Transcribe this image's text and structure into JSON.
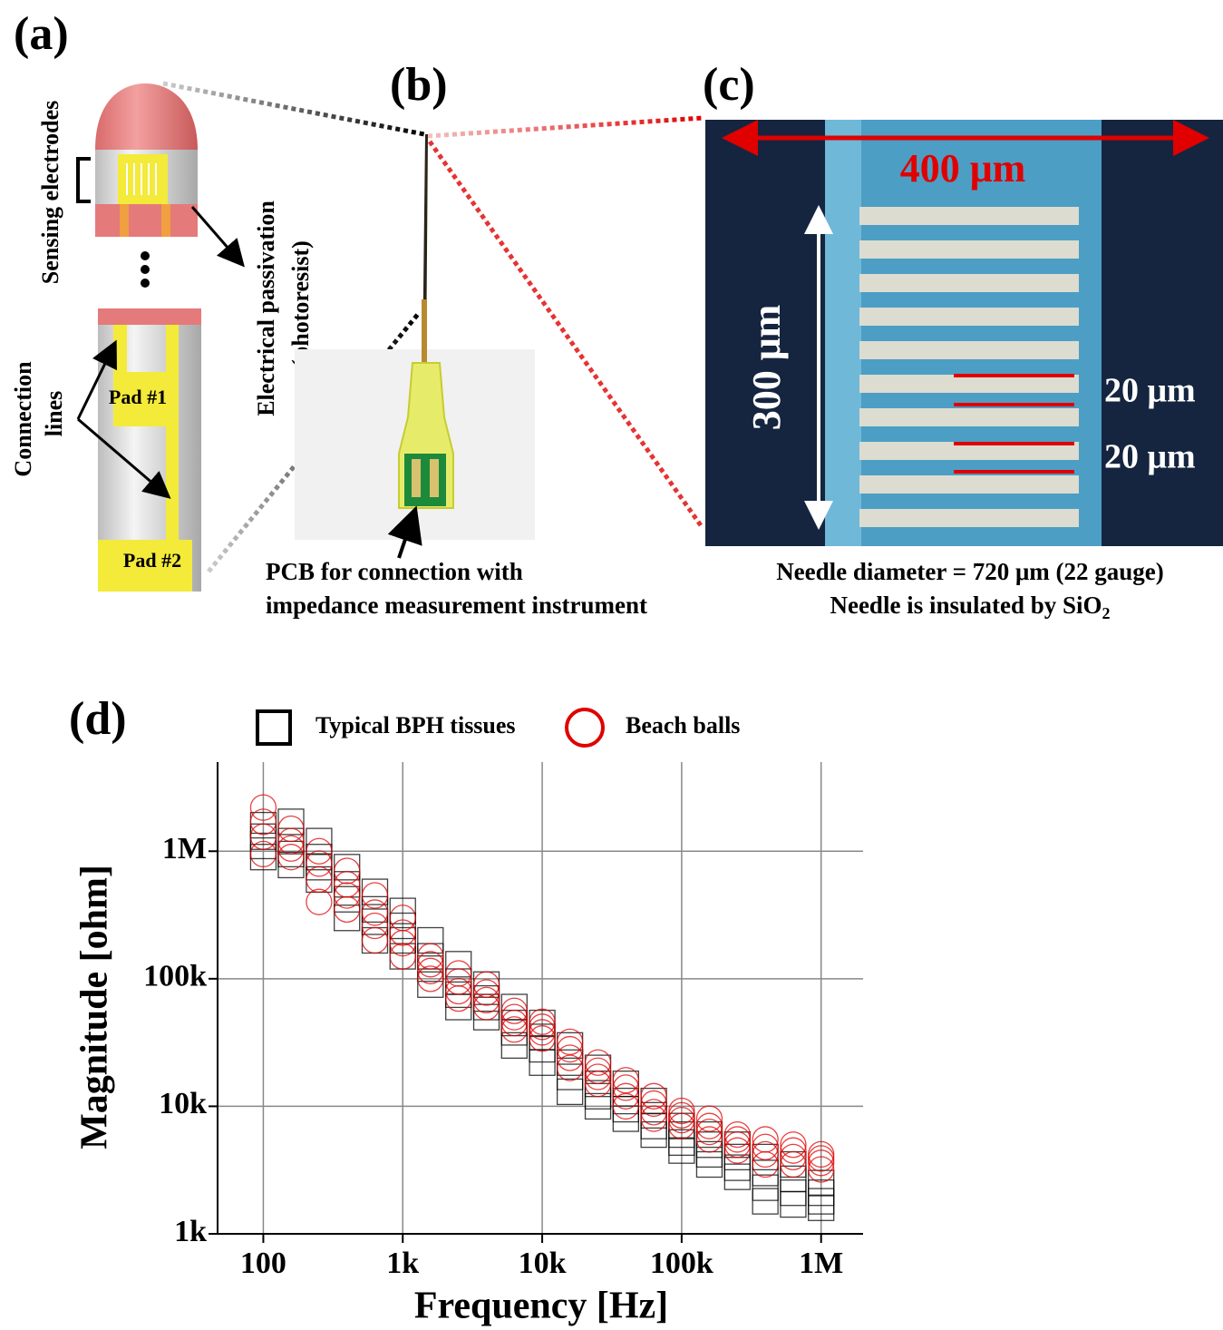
{
  "panels": {
    "a": {
      "label": "(a)",
      "sensing": "Sensing electrodes",
      "passivation": [
        "Electrical passivation",
        "(photoresist)"
      ],
      "connection": [
        "Connection",
        "lines"
      ],
      "pad1": "Pad #1",
      "pad2": "Pad #2"
    },
    "b": {
      "label": "(b)",
      "caption": [
        "PCB for connection with",
        "impedance measurement instrument"
      ]
    },
    "c": {
      "label": "(c)",
      "width": "400 μm",
      "height": "300 μm",
      "gap1": "20 μm",
      "gap2": "20 μm",
      "caption": [
        "Needle diameter = 720 μm (22 gauge)",
        "Needle is insulated by SiO"
      ],
      "subscript": "2"
    }
  },
  "chart_data": {
    "type": "scatter",
    "panel_label": "(d)",
    "xlabel": "Frequency [Hz]",
    "ylabel": "Magnitude [ohm]",
    "xscale": "log",
    "yscale": "log",
    "grid": true,
    "legend": "top",
    "xlim": [
      47,
      2000000
    ],
    "ylim": [
      1000,
      5000000
    ],
    "xticks": [
      100,
      {
        "value": 1000,
        "label": "1k"
      },
      {
        "value": 10000,
        "label": "10k"
      },
      {
        "value": 100000,
        "label": "100k"
      },
      {
        "value": 1000000,
        "label": "1M"
      }
    ],
    "yticks": [
      {
        "value": 1000,
        "label": "1k"
      },
      {
        "value": 10000,
        "label": "10k"
      },
      {
        "value": 100000,
        "label": "100k"
      },
      {
        "value": 1000000,
        "label": "1M"
      }
    ],
    "x": [
      100,
      158,
      251,
      398,
      631,
      1000,
      1580,
      2510,
      3980,
      6310,
      10000,
      15800,
      25100,
      39800,
      63100,
      100000,
      158000,
      251000,
      398000,
      631000,
      1000000
    ],
    "series": [
      {
        "name": "Typical BPH tissues",
        "color": "#000000",
        "marker": "square",
        "values": [
          [
            900000,
            1100000,
            1300000,
            1600000
          ],
          [
            780000,
            950000,
            1200000,
            1700000
          ],
          [
            600000,
            750000,
            900000,
            1200000
          ],
          [
            300000,
            420000,
            550000,
            750000
          ],
          [
            200000,
            280000,
            350000,
            480000
          ],
          [
            150000,
            200000,
            260000,
            340000
          ],
          [
            90000,
            120000,
            150000,
            200000
          ],
          [
            60000,
            75000,
            95000,
            130000
          ],
          [
            50000,
            60000,
            70000,
            90000
          ],
          [
            30000,
            38000,
            45000,
            60000
          ],
          [
            22000,
            28000,
            35000,
            45000
          ],
          [
            13000,
            17000,
            22000,
            30000
          ],
          [
            10000,
            12000,
            15000,
            20000
          ],
          [
            8000,
            9500,
            11000,
            15000
          ],
          [
            6000,
            7000,
            8500,
            11000
          ],
          [
            4500,
            5200,
            6000,
            7000
          ],
          [
            3500,
            4200,
            5000,
            6000
          ],
          [
            2800,
            3300,
            4000,
            5000
          ],
          [
            1800,
            2300,
            3000,
            4000
          ],
          [
            1700,
            2100,
            2700,
            3500
          ],
          [
            1600,
            1800,
            2100,
            2500
          ]
        ]
      },
      {
        "name": "Beach balls",
        "color": "#e00000",
        "marker": "circle",
        "values": [
          [
            950000,
            1300000,
            1700000,
            2200000
          ],
          [
            900000,
            1050000,
            1200000,
            1500000
          ],
          [
            400000,
            600000,
            800000,
            1000000
          ],
          [
            350000,
            450000,
            550000,
            700000
          ],
          [
            200000,
            260000,
            330000,
            450000
          ],
          [
            150000,
            190000,
            230000,
            300000
          ],
          [
            100000,
            115000,
            130000,
            150000
          ],
          [
            70000,
            80000,
            95000,
            110000
          ],
          [
            60000,
            68000,
            78000,
            90000
          ],
          [
            40000,
            45000,
            50000,
            56000
          ],
          [
            34000,
            38000,
            42000,
            46000
          ],
          [
            20000,
            24000,
            28000,
            32000
          ],
          [
            15000,
            17000,
            19000,
            22000
          ],
          [
            10000,
            12000,
            14000,
            16000
          ],
          [
            8000,
            9000,
            10500,
            12000
          ],
          [
            7000,
            7800,
            8500,
            9200
          ],
          [
            5500,
            6300,
            7000,
            8000
          ],
          [
            4500,
            5000,
            5500,
            6000
          ],
          [
            3500,
            4200,
            4800,
            5500
          ],
          [
            3500,
            4000,
            4500,
            5000
          ],
          [
            3200,
            3600,
            3900,
            4200
          ]
        ]
      }
    ]
  }
}
